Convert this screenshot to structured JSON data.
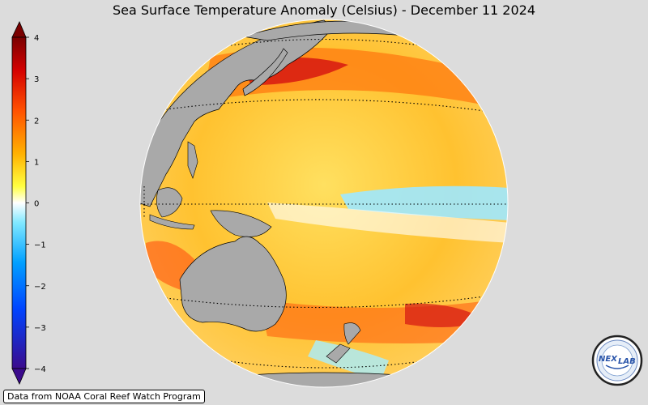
{
  "title": "Sea Surface Temperature Anomaly (Celsius) - December 11 2024",
  "colorbar": {
    "ticks": [
      "4",
      "3",
      "2",
      "1",
      "0",
      "−1",
      "−2",
      "−3",
      "−4"
    ],
    "min": -4,
    "max": 4,
    "colors": [
      "#3b0a8c",
      "#0044ff",
      "#00a0ff",
      "#80e8ff",
      "#ffffff",
      "#ffff40",
      "#ffb000",
      "#ff5000",
      "#d40000",
      "#7a0000"
    ]
  },
  "credit": "Data from NOAA Coral Reef Watch Program",
  "logo": {
    "text_left": "NEX",
    "text_right": "LAB"
  },
  "map": {
    "projection": "orthographic",
    "center_region": "Pacific Ocean",
    "land_color": "#a9a9a9",
    "background_color": "#dcdcdc"
  }
}
